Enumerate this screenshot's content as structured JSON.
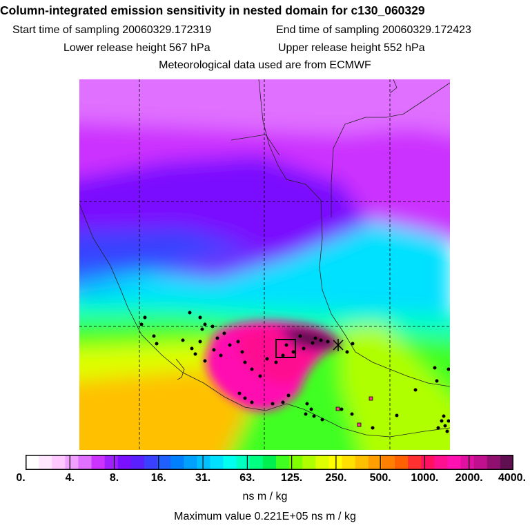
{
  "header": {
    "title": "Column-integrated emission sensitivity in nested domain for c130_060329",
    "start_label": "Start time of sampling",
    "start_value": "20060329.172319",
    "end_label": "End time of sampling",
    "end_value": "20060329.172423",
    "lower_label": "Lower release height",
    "lower_value": "567 hPa",
    "upper_label": "Upper release height",
    "upper_value": "552 hPa",
    "met_line": "Meteorological data used are from ECMWF"
  },
  "colorbar": {
    "units": "ns m / kg",
    "tick_labels": [
      "0.",
      "4.",
      "8.",
      "16.",
      "31.",
      "63.",
      "125.",
      "250.",
      "500.",
      "1000.",
      "2000.",
      "4000."
    ],
    "colors": [
      "#ffffff",
      "#ffe8ff",
      "#ffc8ff",
      "#f0a0ff",
      "#e070ff",
      "#cc33ff",
      "#a020ff",
      "#7a10ff",
      "#5a20ff",
      "#3a40ff",
      "#2060ff",
      "#0080ff",
      "#00a0ff",
      "#00c0ff",
      "#00e0ff",
      "#00ffee",
      "#00ffc0",
      "#00ff80",
      "#00f050",
      "#40ff20",
      "#80ff00",
      "#b0ff00",
      "#ddff00",
      "#ffff00",
      "#ffe000",
      "#ffc000",
      "#ffa000",
      "#ff8000",
      "#ff6000",
      "#ff3030",
      "#ff1060",
      "#ff1090",
      "#ff10b0",
      "#e010a0",
      "#c01090",
      "#901070",
      "#601050"
    ]
  },
  "max_value": "Maximum value  0.221E+05 ns m / kg",
  "chart_data": {
    "type": "heatmap",
    "title": "Column-integrated emission sensitivity in nested domain for c130_060329",
    "colorbar_levels": [
      0,
      4,
      8,
      16,
      31,
      63,
      125,
      250,
      500,
      1000,
      2000,
      4000
    ],
    "colorbar_units": "ns m / kg",
    "maximum_value": 22100,
    "regions": [
      {
        "area": "north (upper third)",
        "level": "8-16 (purple)"
      },
      {
        "area": "north-west band",
        "level": "16-31 (blue)"
      },
      {
        "area": "middle",
        "level": "31-63 (cyan)"
      },
      {
        "area": "south-west",
        "level": "250-500 (yellow/orange)"
      },
      {
        "area": "central south plume",
        "level": "1000-4000 (magenta)"
      },
      {
        "area": "source region",
        "level": ">4000 (dark purple)"
      }
    ]
  }
}
